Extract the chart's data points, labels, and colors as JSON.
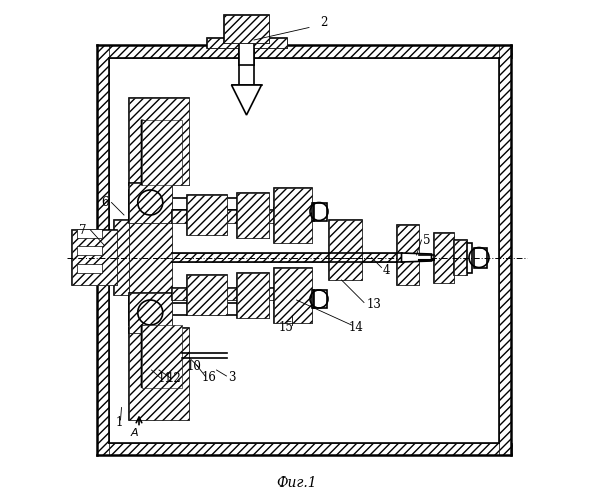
{
  "fig_label": "Фиг.1",
  "background_color": "#ffffff",
  "line_color": "#000000"
}
